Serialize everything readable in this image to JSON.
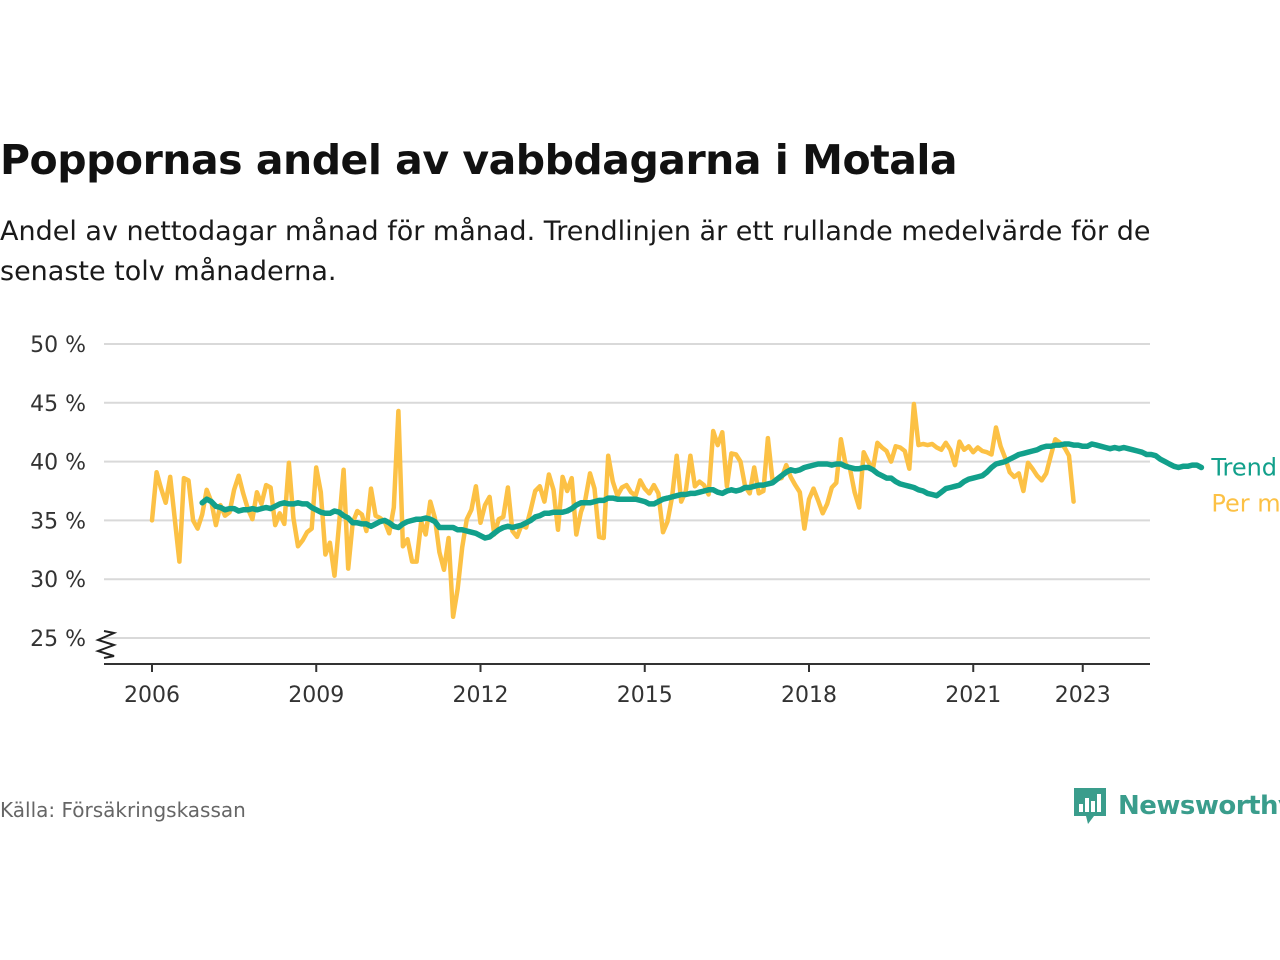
{
  "title": "Poppornas andel av vabbdagarna i Motala",
  "subtitle": "Andel av nettodagar månad för månad. Trendlinjen är ett rullande medelvärde för de senaste tolv månaderna.",
  "source": "Källa: Försäkringskassan",
  "logo": {
    "name": "Newsworthy",
    "icon": "bar-chart-speech-bubble-icon"
  },
  "colors": {
    "monthly": "#fcc145",
    "trend": "#12a08b",
    "grid": "#d9d9d9",
    "axis": "#333333",
    "logo": "#3a9d8c"
  },
  "chart_data": {
    "type": "line",
    "ylim": [
      25,
      50
    ],
    "yticks": [
      25,
      30,
      35,
      40,
      45,
      50
    ],
    "ytick_labels": [
      "25 %",
      "30 %",
      "35 %",
      "40 %",
      "45 %",
      "50 %"
    ],
    "y_axis_break": true,
    "xlim": [
      2006,
      2024.3
    ],
    "xticks": [
      2006,
      2009,
      2012,
      2015,
      2018,
      2021,
      2023
    ],
    "xtick_labels": [
      "2006",
      "2009",
      "2012",
      "2015",
      "2018",
      "2021",
      "2023"
    ],
    "grid": true,
    "legend": "direct labels at line ends",
    "series": [
      {
        "name": "Per månad",
        "x_start": 2006.0,
        "step": 0.08333,
        "values": [
          35.0,
          39.1,
          37.7,
          36.5,
          38.7,
          35.1,
          31.5,
          38.6,
          38.4,
          35.0,
          34.3,
          35.5,
          37.6,
          36.6,
          34.6,
          36.3,
          35.4,
          35.7,
          37.6,
          38.8,
          37.3,
          36.0,
          35.1,
          37.4,
          36.4,
          38.0,
          37.8,
          34.6,
          35.6,
          34.7,
          39.9,
          35.2,
          32.8,
          33.3,
          34.0,
          34.3,
          39.5,
          37.4,
          32.1,
          33.1,
          30.3,
          34.7,
          39.3,
          30.9,
          34.8,
          35.8,
          35.5,
          34.1,
          37.7,
          35.4,
          35.2,
          34.9,
          33.9,
          36.1,
          44.3,
          32.8,
          33.4,
          31.5,
          31.5,
          34.9,
          33.8,
          36.6,
          35.2,
          32.3,
          30.8,
          33.5,
          26.8,
          29.2,
          32.7,
          35.1,
          35.9,
          37.9,
          34.8,
          36.3,
          37.0,
          33.8,
          35.1,
          35.3,
          37.8,
          34.1,
          33.6,
          34.6,
          34.4,
          35.9,
          37.5,
          37.9,
          36.6,
          38.9,
          37.6,
          34.2,
          38.7,
          37.5,
          38.6,
          33.8,
          35.7,
          36.8,
          39.0,
          37.7,
          33.6,
          33.5,
          40.5,
          38.3,
          37.1,
          37.8,
          38.0,
          37.4,
          37.1,
          38.4,
          37.7,
          37.3,
          38.0,
          37.3,
          34.0,
          34.9,
          37.0,
          40.5,
          36.6,
          37.5,
          40.5,
          37.9,
          38.3,
          38.0,
          37.2,
          42.6,
          41.4,
          42.5,
          37.9,
          40.7,
          40.6,
          40.0,
          37.9,
          37.3,
          39.5,
          37.3,
          37.5,
          42.0,
          38.4,
          38.5,
          38.6,
          39.7,
          38.7,
          38.0,
          37.4,
          34.3,
          36.8,
          37.7,
          36.7,
          35.6,
          36.4,
          37.8,
          38.2,
          41.9,
          39.8,
          39.4,
          37.4,
          36.1,
          40.8,
          40.0,
          39.3,
          41.6,
          41.2,
          40.9,
          40.0,
          41.3,
          41.2,
          40.9,
          39.4,
          44.9,
          41.4,
          41.5,
          41.4,
          41.5,
          41.2,
          41.0,
          41.6,
          41.0,
          39.7,
          41.7,
          41.0,
          41.3,
          40.8,
          41.2,
          40.9,
          40.8,
          40.6,
          42.9,
          41.3,
          40.3,
          39.1,
          38.7,
          39.0,
          37.5,
          39.9,
          39.4,
          38.8,
          38.4,
          39.0,
          40.5,
          41.9,
          41.6,
          41.2,
          40.5,
          36.6
        ]
      },
      {
        "name": "Trend",
        "x_start": 2006.917,
        "step": 0.08333,
        "values": [
          36.5,
          36.8,
          36.6,
          36.2,
          36.1,
          35.9,
          36.0,
          36.0,
          35.8,
          35.9,
          35.9,
          36.0,
          35.9,
          36.0,
          36.1,
          36.0,
          36.2,
          36.4,
          36.5,
          36.4,
          36.4,
          36.5,
          36.4,
          36.4,
          36.1,
          35.9,
          35.7,
          35.6,
          35.6,
          35.8,
          35.7,
          35.4,
          35.2,
          34.8,
          34.8,
          34.7,
          34.7,
          34.5,
          34.7,
          34.9,
          35.0,
          34.8,
          34.5,
          34.4,
          34.7,
          34.9,
          35.0,
          35.1,
          35.1,
          35.2,
          35.1,
          34.9,
          34.4,
          34.4,
          34.4,
          34.4,
          34.2,
          34.2,
          34.1,
          34.0,
          33.9,
          33.7,
          33.5,
          33.6,
          33.9,
          34.2,
          34.4,
          34.5,
          34.4,
          34.5,
          34.6,
          34.8,
          35.0,
          35.3,
          35.4,
          35.6,
          35.6,
          35.7,
          35.7,
          35.7,
          35.8,
          36.0,
          36.3,
          36.5,
          36.5,
          36.5,
          36.6,
          36.7,
          36.7,
          36.9,
          36.9,
          36.8,
          36.8,
          36.8,
          36.8,
          36.8,
          36.7,
          36.6,
          36.4,
          36.4,
          36.6,
          36.8,
          36.9,
          37.0,
          37.1,
          37.2,
          37.2,
          37.3,
          37.3,
          37.4,
          37.5,
          37.6,
          37.6,
          37.4,
          37.3,
          37.5,
          37.6,
          37.5,
          37.6,
          37.8,
          37.8,
          37.9,
          38.0,
          38.0,
          38.1,
          38.2,
          38.5,
          38.8,
          39.1,
          39.3,
          39.2,
          39.3,
          39.5,
          39.6,
          39.7,
          39.8,
          39.8,
          39.8,
          39.7,
          39.8,
          39.8,
          39.6,
          39.5,
          39.4,
          39.4,
          39.5,
          39.5,
          39.3,
          39.0,
          38.8,
          38.6,
          38.6,
          38.3,
          38.1,
          38.0,
          37.9,
          37.8,
          37.6,
          37.5,
          37.3,
          37.2,
          37.1,
          37.4,
          37.7,
          37.8,
          37.9,
          38.0,
          38.3,
          38.5,
          38.6,
          38.7,
          38.8,
          39.1,
          39.5,
          39.8,
          39.9,
          40.0,
          40.2,
          40.4,
          40.6,
          40.7,
          40.8,
          40.9,
          41.0,
          41.2,
          41.3,
          41.3,
          41.4,
          41.4,
          41.5,
          41.5,
          41.4,
          41.4,
          41.3,
          41.3,
          41.5,
          41.4,
          41.3,
          41.2,
          41.1,
          41.2,
          41.1,
          41.2,
          41.1,
          41.0,
          40.9,
          40.8,
          40.6,
          40.6,
          40.5,
          40.2,
          40.0,
          39.8,
          39.6,
          39.5,
          39.6,
          39.6,
          39.7,
          39.7,
          39.5
        ]
      }
    ]
  }
}
